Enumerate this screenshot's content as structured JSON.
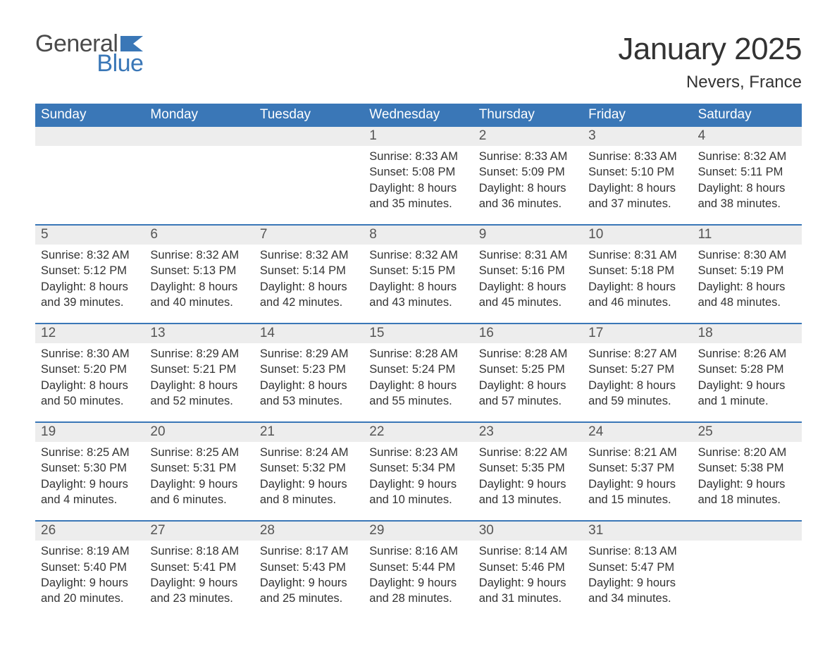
{
  "brand": {
    "word1": "General",
    "word2": "Blue",
    "flag_color": "#3a77b7"
  },
  "title": "January 2025",
  "location": "Nevers, France",
  "calendar": {
    "header_bg": "#3a77b7",
    "header_fg": "#ffffff",
    "rule_color": "#3a77b7",
    "daynum_bg": "#ededed",
    "text_color": "#333333",
    "weekdays": [
      "Sunday",
      "Monday",
      "Tuesday",
      "Wednesday",
      "Thursday",
      "Friday",
      "Saturday"
    ],
    "weeks": [
      [
        null,
        null,
        null,
        {
          "n": "1",
          "sunrise": "8:33 AM",
          "sunset": "5:08 PM",
          "daylight": "8 hours and 35 minutes."
        },
        {
          "n": "2",
          "sunrise": "8:33 AM",
          "sunset": "5:09 PM",
          "daylight": "8 hours and 36 minutes."
        },
        {
          "n": "3",
          "sunrise": "8:33 AM",
          "sunset": "5:10 PM",
          "daylight": "8 hours and 37 minutes."
        },
        {
          "n": "4",
          "sunrise": "8:32 AM",
          "sunset": "5:11 PM",
          "daylight": "8 hours and 38 minutes."
        }
      ],
      [
        {
          "n": "5",
          "sunrise": "8:32 AM",
          "sunset": "5:12 PM",
          "daylight": "8 hours and 39 minutes."
        },
        {
          "n": "6",
          "sunrise": "8:32 AM",
          "sunset": "5:13 PM",
          "daylight": "8 hours and 40 minutes."
        },
        {
          "n": "7",
          "sunrise": "8:32 AM",
          "sunset": "5:14 PM",
          "daylight": "8 hours and 42 minutes."
        },
        {
          "n": "8",
          "sunrise": "8:32 AM",
          "sunset": "5:15 PM",
          "daylight": "8 hours and 43 minutes."
        },
        {
          "n": "9",
          "sunrise": "8:31 AM",
          "sunset": "5:16 PM",
          "daylight": "8 hours and 45 minutes."
        },
        {
          "n": "10",
          "sunrise": "8:31 AM",
          "sunset": "5:18 PM",
          "daylight": "8 hours and 46 minutes."
        },
        {
          "n": "11",
          "sunrise": "8:30 AM",
          "sunset": "5:19 PM",
          "daylight": "8 hours and 48 minutes."
        }
      ],
      [
        {
          "n": "12",
          "sunrise": "8:30 AM",
          "sunset": "5:20 PM",
          "daylight": "8 hours and 50 minutes."
        },
        {
          "n": "13",
          "sunrise": "8:29 AM",
          "sunset": "5:21 PM",
          "daylight": "8 hours and 52 minutes."
        },
        {
          "n": "14",
          "sunrise": "8:29 AM",
          "sunset": "5:23 PM",
          "daylight": "8 hours and 53 minutes."
        },
        {
          "n": "15",
          "sunrise": "8:28 AM",
          "sunset": "5:24 PM",
          "daylight": "8 hours and 55 minutes."
        },
        {
          "n": "16",
          "sunrise": "8:28 AM",
          "sunset": "5:25 PM",
          "daylight": "8 hours and 57 minutes."
        },
        {
          "n": "17",
          "sunrise": "8:27 AM",
          "sunset": "5:27 PM",
          "daylight": "8 hours and 59 minutes."
        },
        {
          "n": "18",
          "sunrise": "8:26 AM",
          "sunset": "5:28 PM",
          "daylight": "9 hours and 1 minute."
        }
      ],
      [
        {
          "n": "19",
          "sunrise": "8:25 AM",
          "sunset": "5:30 PM",
          "daylight": "9 hours and 4 minutes."
        },
        {
          "n": "20",
          "sunrise": "8:25 AM",
          "sunset": "5:31 PM",
          "daylight": "9 hours and 6 minutes."
        },
        {
          "n": "21",
          "sunrise": "8:24 AM",
          "sunset": "5:32 PM",
          "daylight": "9 hours and 8 minutes."
        },
        {
          "n": "22",
          "sunrise": "8:23 AM",
          "sunset": "5:34 PM",
          "daylight": "9 hours and 10 minutes."
        },
        {
          "n": "23",
          "sunrise": "8:22 AM",
          "sunset": "5:35 PM",
          "daylight": "9 hours and 13 minutes."
        },
        {
          "n": "24",
          "sunrise": "8:21 AM",
          "sunset": "5:37 PM",
          "daylight": "9 hours and 15 minutes."
        },
        {
          "n": "25",
          "sunrise": "8:20 AM",
          "sunset": "5:38 PM",
          "daylight": "9 hours and 18 minutes."
        }
      ],
      [
        {
          "n": "26",
          "sunrise": "8:19 AM",
          "sunset": "5:40 PM",
          "daylight": "9 hours and 20 minutes."
        },
        {
          "n": "27",
          "sunrise": "8:18 AM",
          "sunset": "5:41 PM",
          "daylight": "9 hours and 23 minutes."
        },
        {
          "n": "28",
          "sunrise": "8:17 AM",
          "sunset": "5:43 PM",
          "daylight": "9 hours and 25 minutes."
        },
        {
          "n": "29",
          "sunrise": "8:16 AM",
          "sunset": "5:44 PM",
          "daylight": "9 hours and 28 minutes."
        },
        {
          "n": "30",
          "sunrise": "8:14 AM",
          "sunset": "5:46 PM",
          "daylight": "9 hours and 31 minutes."
        },
        {
          "n": "31",
          "sunrise": "8:13 AM",
          "sunset": "5:47 PM",
          "daylight": "9 hours and 34 minutes."
        },
        null
      ]
    ],
    "labels": {
      "sunrise": "Sunrise: ",
      "sunset": "Sunset: ",
      "daylight": "Daylight: "
    }
  }
}
